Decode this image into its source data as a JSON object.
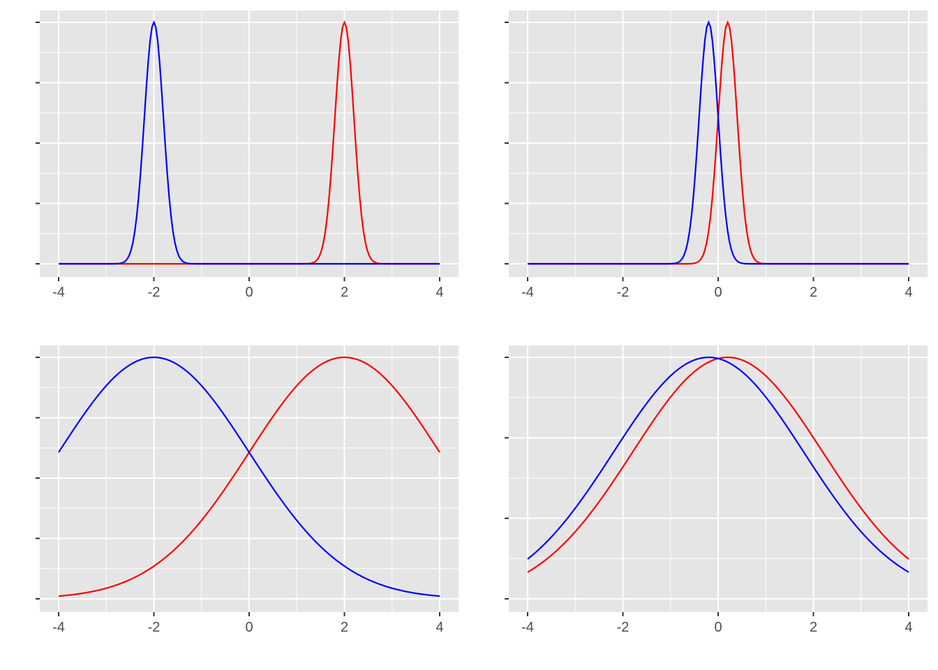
{
  "figure": {
    "background": "#ffffff",
    "panel_background": "#e5e5e5",
    "grid_color": "#ffffff",
    "tick_color": "#333333",
    "label_color": "#4d4d4d"
  },
  "chart_data": [
    {
      "type": "line",
      "position": "top-left",
      "x_ticks": [
        -4,
        -2,
        0,
        2,
        4
      ],
      "x_tick_labels": [
        "-4",
        "-2",
        "0",
        "2",
        "4"
      ],
      "xlim": [
        -4,
        4
      ],
      "ylim": [
        0,
        1
      ],
      "y_tick_count": 5,
      "y_tick_labels_shown": false,
      "grid": true,
      "series": [
        {
          "color": "#ff0000",
          "mean": 2,
          "sd": 0.2,
          "peak": 1,
          "baseline": 0
        },
        {
          "color": "#0000ff",
          "mean": -2,
          "sd": 0.2,
          "peak": 1,
          "baseline": 0
        }
      ]
    },
    {
      "type": "line",
      "position": "top-right",
      "x_ticks": [
        -4,
        -2,
        0,
        2,
        4
      ],
      "x_tick_labels": [
        "-4",
        "-2",
        "0",
        "2",
        "4"
      ],
      "xlim": [
        -4,
        4
      ],
      "ylim": [
        0,
        1
      ],
      "y_tick_count": 5,
      "y_tick_labels_shown": false,
      "grid": true,
      "series": [
        {
          "color": "#ff0000",
          "mean": 0.2,
          "sd": 0.2,
          "peak": 1,
          "baseline": 0
        },
        {
          "color": "#0000ff",
          "mean": -0.2,
          "sd": 0.2,
          "peak": 1,
          "baseline": 0
        }
      ]
    },
    {
      "type": "line",
      "position": "bottom-left",
      "x_ticks": [
        -4,
        -2,
        0,
        2,
        4
      ],
      "x_tick_labels": [
        "-4",
        "-2",
        "0",
        "2",
        "4"
      ],
      "xlim": [
        -4,
        4
      ],
      "ylim": [
        0,
        1
      ],
      "y_tick_count": 5,
      "y_tick_labels_shown": false,
      "grid": true,
      "series": [
        {
          "color": "#ff0000",
          "mean": 2,
          "sd": 2,
          "peak": 1,
          "baseline": 0
        },
        {
          "color": "#0000ff",
          "mean": -2,
          "sd": 2,
          "peak": 1,
          "baseline": 0
        }
      ]
    },
    {
      "type": "line",
      "position": "bottom-right",
      "x_ticks": [
        -4,
        -2,
        0,
        2,
        4
      ],
      "x_tick_labels": [
        "-4",
        "-2",
        "0",
        "2",
        "4"
      ],
      "xlim": [
        -4,
        4
      ],
      "ylim": [
        0,
        1
      ],
      "y_tick_count": 4,
      "y_tick_labels_shown": false,
      "grid": true,
      "series": [
        {
          "color": "#ff0000",
          "mean": 0.2,
          "sd": 2,
          "peak": 1,
          "baseline": 0
        },
        {
          "color": "#0000ff",
          "mean": -0.2,
          "sd": 2,
          "peak": 1,
          "baseline": 0
        }
      ]
    }
  ]
}
